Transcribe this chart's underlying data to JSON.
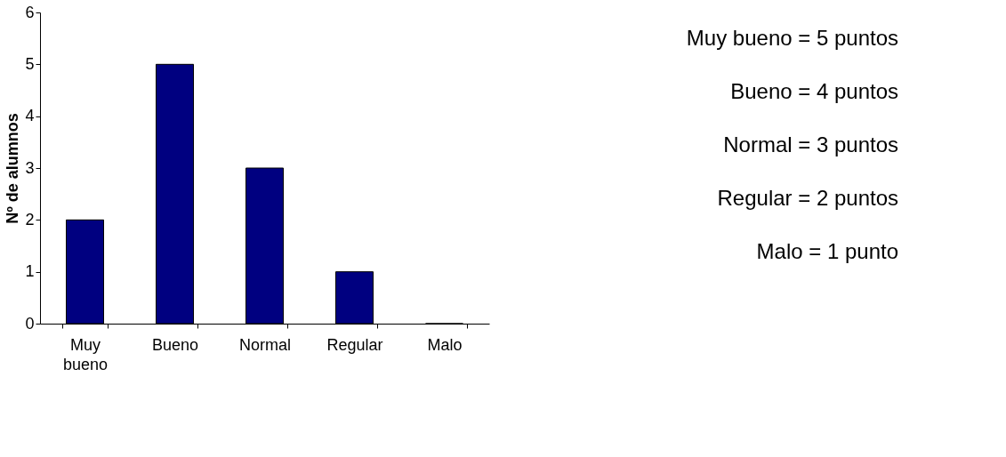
{
  "chart_data": {
    "type": "bar",
    "ylabel": "Nº de alumnos",
    "categories": [
      "Muy bueno",
      "Bueno",
      "Normal",
      "Regular",
      "Malo"
    ],
    "values": [
      2,
      5,
      3,
      1,
      0
    ],
    "color": "#000080",
    "ylim": [
      0,
      6
    ],
    "yticks": [
      0,
      1,
      2,
      3,
      4,
      5,
      6
    ],
    "grid": false,
    "annotations": [
      "Muy bueno = 5 puntos",
      "Bueno = 4 puntos",
      "Normal = 3 puntos",
      "Regular = 2 puntos",
      "Malo = 1 punto"
    ]
  }
}
